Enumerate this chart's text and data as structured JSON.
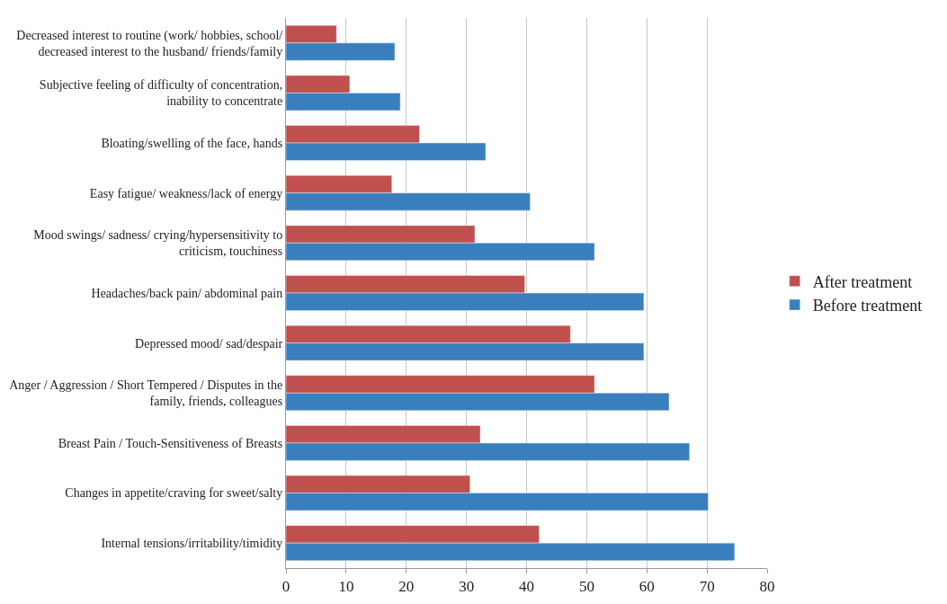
{
  "chart_data": {
    "type": "bar",
    "orientation": "horizontal",
    "categories": [
      "Decreased interest to routine (work/ hobbies, school/ decreased interest to the husband/ friends/family",
      "Subjective feeling of difficulty of concentration, inability to concentrate",
      "Bloating/swelling of the face, hands",
      "Easy fatigue/ weakness/lack of energy",
      "Mood swings/ sadness/ crying/hypersensitivity to criticism, touchiness",
      "Headaches/back pain/ abdominal pain",
      "Depressed mood/ sad/despair",
      "Anger / Aggression / Short Tempered / Disputes in the family, friends, colleagues",
      "Breast Pain / Touch-Sensitiveness of Breasts",
      "Changes in appetite/craving for sweet/salty",
      "Internal tensions/irritability/timidity"
    ],
    "series": [
      {
        "name": "After treatment",
        "color": "#c0504d",
        "values": [
          8.4,
          10.6,
          22.2,
          17.6,
          31.4,
          39.7,
          47.3,
          51.3,
          32.3,
          30.6,
          42.1
        ]
      },
      {
        "name": "Before treatment",
        "color": "#3a7fbd",
        "values": [
          18.1,
          19.0,
          33.2,
          40.6,
          51.3,
          59.5,
          59.5,
          63.7,
          67.1,
          70.2,
          74.6
        ]
      }
    ],
    "xlim": [
      0,
      80
    ],
    "xticks": [
      0,
      10,
      20,
      30,
      40,
      50,
      60,
      70,
      80
    ],
    "grid": "x",
    "legend": "right"
  }
}
